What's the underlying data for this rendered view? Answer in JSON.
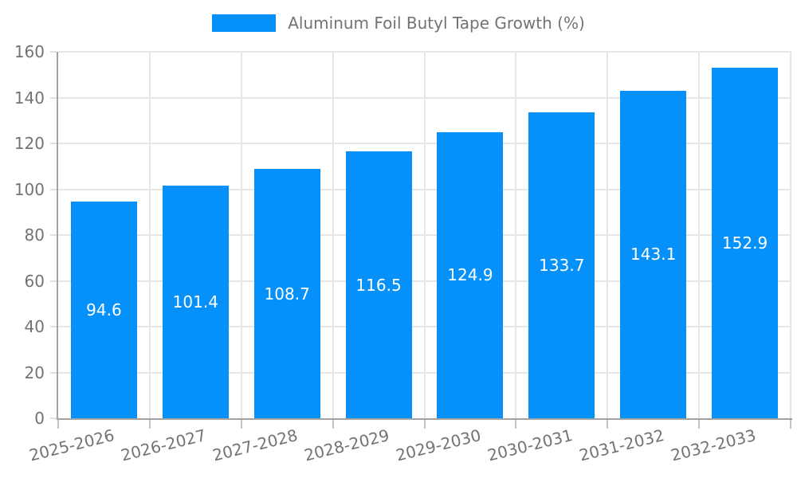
{
  "legend": {
    "label": "Aluminum Foil Butyl Tape Growth (%)"
  },
  "chart_data": {
    "type": "bar",
    "title": "Aluminum Foil Butyl Tape Growth (%)",
    "categories": [
      "2025-2026",
      "2026-2027",
      "2027-2028",
      "2028-2029",
      "2029-2030",
      "2030-2031",
      "2031-2032",
      "2032-2033"
    ],
    "values": [
      94.6,
      101.4,
      108.7,
      116.5,
      124.9,
      133.7,
      143.1,
      152.9
    ],
    "value_labels": [
      "94.6",
      "101.4",
      "108.7",
      "116.5",
      "124.9",
      "133.7",
      "143.1",
      "152.9"
    ],
    "xlabel": "",
    "ylabel": "",
    "ylim": [
      0,
      160
    ],
    "yticks": [
      0,
      20,
      40,
      60,
      80,
      100,
      120,
      140,
      160
    ],
    "grid": true,
    "legend_position": "top-center",
    "colors": {
      "bar": "#0590fa",
      "bar_label": "#ffffff",
      "grid": "#e6e6e6",
      "axis": "#a2a2a2",
      "x_tick_mark": "#c2c2c2",
      "y_tick_mark": "#e0e0e0",
      "tick_text": "#737373",
      "legend_text": "#737373"
    }
  }
}
